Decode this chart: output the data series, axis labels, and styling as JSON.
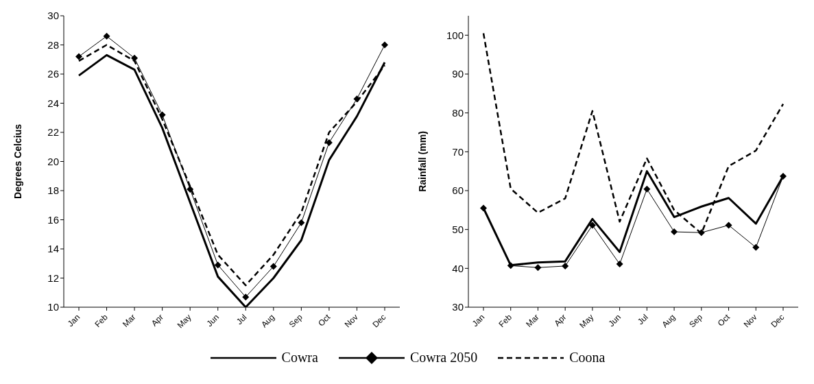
{
  "chart_data": [
    {
      "type": "line",
      "ylabel": "Degrees Celcius",
      "categories": [
        "Jan",
        "Feb",
        "Mar",
        "Apr",
        "May",
        "Jun",
        "Jul",
        "Aug",
        "Sep",
        "Oct",
        "Nov",
        "Dec"
      ],
      "ylim": [
        10,
        30
      ],
      "yticks": [
        10,
        12,
        14,
        16,
        18,
        20,
        22,
        24,
        26,
        28,
        30
      ],
      "grid": false,
      "legend": "bottom",
      "series": [
        {
          "name": "Cowra",
          "color": "#000000",
          "marker": "none",
          "line_style": "solid",
          "values": [
            25.9,
            27.3,
            26.3,
            22.3,
            17.2,
            12.1,
            10.0,
            12.0,
            14.6,
            20.1,
            23.1,
            26.8
          ]
        },
        {
          "name": "Cowra 2050",
          "color": "#000000",
          "marker": "diamond",
          "line_style": "solid",
          "values": [
            27.2,
            28.6,
            27.1,
            23.2,
            18.1,
            12.9,
            10.7,
            12.8,
            15.8,
            21.3,
            24.3,
            28.0
          ]
        },
        {
          "name": "Coona",
          "color": "#000000",
          "marker": "none",
          "line_style": "dashed",
          "values": [
            26.9,
            28.0,
            26.9,
            22.9,
            18.3,
            13.6,
            11.5,
            13.6,
            16.5,
            22.0,
            24.1,
            26.6
          ]
        }
      ]
    },
    {
      "type": "line",
      "ylabel": "Rainfall (mm)",
      "categories": [
        "Jan",
        "Feb",
        "Mar",
        "Apr",
        "May",
        "Jun",
        "Jul",
        "Aug",
        "Sep",
        "Oct",
        "Nov",
        "Dec"
      ],
      "ylim": [
        30,
        105
      ],
      "yticks": [
        30,
        40,
        50,
        60,
        70,
        80,
        90,
        100
      ],
      "grid": false,
      "series": [
        {
          "color": "#000000",
          "marker": "none",
          "line_style": "solid",
          "values": [
            55.5,
            40.8,
            41.5,
            41.8,
            52.7,
            44.2,
            65.0,
            53.2,
            55.9,
            58.1,
            51.5,
            63.7
          ]
        },
        {
          "color": "#000000",
          "marker": "diamond",
          "line_style": "solid",
          "values": [
            55.5,
            40.7,
            40.2,
            40.6,
            51.1,
            41.1,
            60.4,
            49.4,
            49.2,
            51.1,
            45.4,
            63.7
          ]
        },
        {
          "color": "#000000",
          "marker": "none",
          "line_style": "dashed",
          "values": [
            100.5,
            60.5,
            54.3,
            58.0,
            80.5,
            52.0,
            68.3,
            55.0,
            49.0,
            66.3,
            70.3,
            82.3
          ]
        }
      ]
    }
  ]
}
